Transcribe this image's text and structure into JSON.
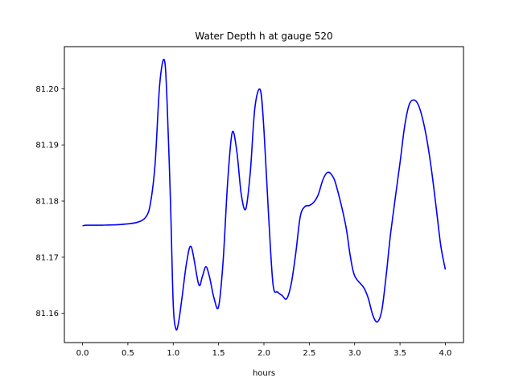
{
  "chart_data": {
    "type": "line",
    "title": "Water Depth h at gauge 520",
    "xlabel": "hours",
    "ylabel": "",
    "xlim": [
      -0.2,
      4.2
    ],
    "ylim": [
      81.1548,
      81.2075
    ],
    "xticks": [
      0.0,
      0.5,
      1.0,
      1.5,
      2.0,
      2.5,
      3.0,
      3.5,
      4.0
    ],
    "xtick_labels": [
      "0.0",
      "0.5",
      "1.0",
      "1.5",
      "2.0",
      "2.5",
      "3.0",
      "3.5",
      "4.0"
    ],
    "yticks": [
      81.16,
      81.17,
      81.18,
      81.19,
      81.2
    ],
    "ytick_labels": [
      "81.16",
      "81.17",
      "81.18",
      "81.19",
      "81.20"
    ],
    "grid": false,
    "series": [
      {
        "color": "#0000ff",
        "x": [
          0.0,
          0.05,
          0.2,
          0.4,
          0.6,
          0.7,
          0.75,
          0.8,
          0.85,
          0.9,
          0.93,
          0.97,
          1.0,
          1.03,
          1.06,
          1.1,
          1.15,
          1.2,
          1.28,
          1.32,
          1.36,
          1.4,
          1.45,
          1.5,
          1.55,
          1.6,
          1.65,
          1.7,
          1.75,
          1.8,
          1.85,
          1.9,
          1.96,
          2.0,
          2.05,
          2.1,
          2.15,
          2.2,
          2.25,
          2.3,
          2.35,
          2.4,
          2.45,
          2.5,
          2.55,
          2.6,
          2.65,
          2.7,
          2.75,
          2.8,
          2.9,
          2.95,
          3.0,
          3.1,
          3.15,
          3.2,
          3.25,
          3.3,
          3.35,
          3.4,
          3.5,
          3.55,
          3.6,
          3.65,
          3.7,
          3.75,
          3.8,
          3.85,
          3.9,
          3.95,
          4.0
        ],
        "y": [
          81.1756,
          81.1757,
          81.1757,
          81.1758,
          81.1762,
          81.1772,
          81.1797,
          81.1866,
          81.2006,
          81.2052,
          81.1986,
          81.1797,
          81.1617,
          81.1572,
          81.1585,
          81.1632,
          81.1693,
          81.1718,
          81.1652,
          81.1665,
          81.1683,
          81.1665,
          81.1627,
          81.1612,
          81.1693,
          81.1834,
          81.1922,
          81.189,
          81.1812,
          81.1786,
          81.1852,
          81.1966,
          81.1998,
          81.1927,
          81.1778,
          81.1652,
          81.1638,
          81.1632,
          81.1626,
          81.1652,
          81.1706,
          81.1772,
          81.179,
          81.1792,
          81.1798,
          81.1812,
          81.1838,
          81.1851,
          81.1846,
          81.1826,
          81.1758,
          81.1704,
          81.1667,
          81.1646,
          81.1627,
          81.1597,
          81.1585,
          81.1606,
          81.1671,
          81.1747,
          81.1868,
          81.1932,
          81.1971,
          81.198,
          81.1972,
          81.1946,
          81.1906,
          81.1852,
          81.1787,
          81.172,
          81.1678
        ]
      }
    ]
  }
}
